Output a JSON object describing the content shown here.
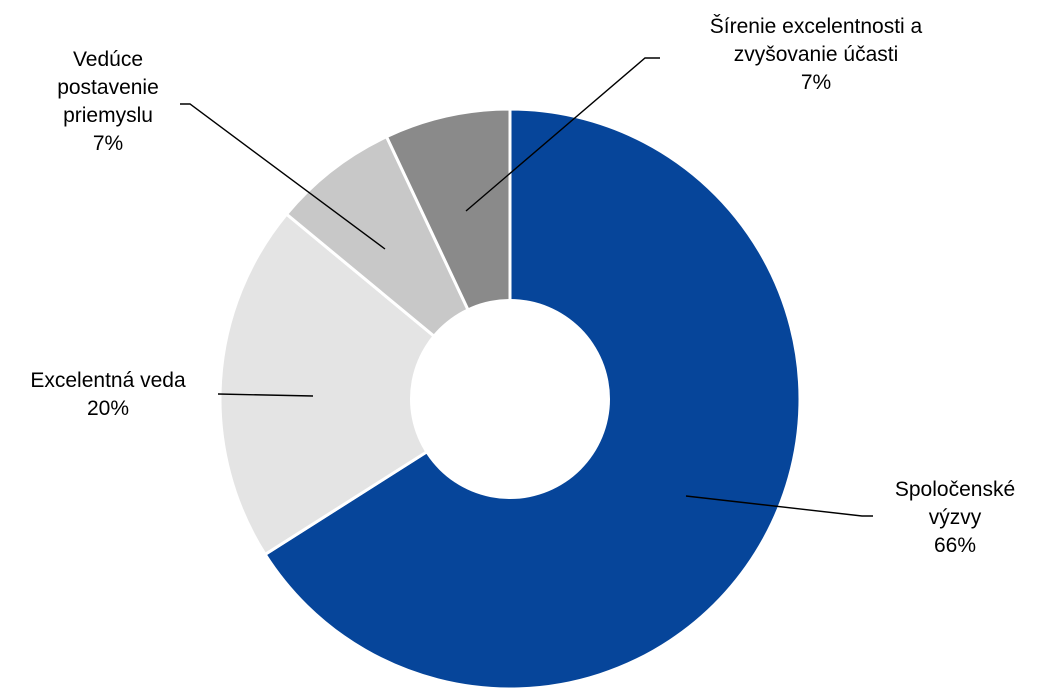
{
  "chart_data": {
    "type": "pie",
    "variant": "donut",
    "title": "",
    "slices": [
      {
        "label": [
          "Spoločenské",
          "výzvy"
        ],
        "percent_label": "66%",
        "value": 66,
        "color": "#06459A"
      },
      {
        "label": [
          "Excelentná veda"
        ],
        "percent_label": "20%",
        "value": 20,
        "color": "#E4E4E4"
      },
      {
        "label": [
          "Vedúce",
          "postavenie",
          "priemyslu"
        ],
        "percent_label": "7%",
        "value": 7,
        "color": "#C8C8C8"
      },
      {
        "label": [
          "Šírenie excelentnosti a",
          "zvyšovanie účasti"
        ],
        "percent_label": "7%",
        "value": 7,
        "color": "#8A8A8A"
      }
    ],
    "start_angle": "12 o'clock",
    "direction": "clockwise",
    "legend": "none"
  }
}
